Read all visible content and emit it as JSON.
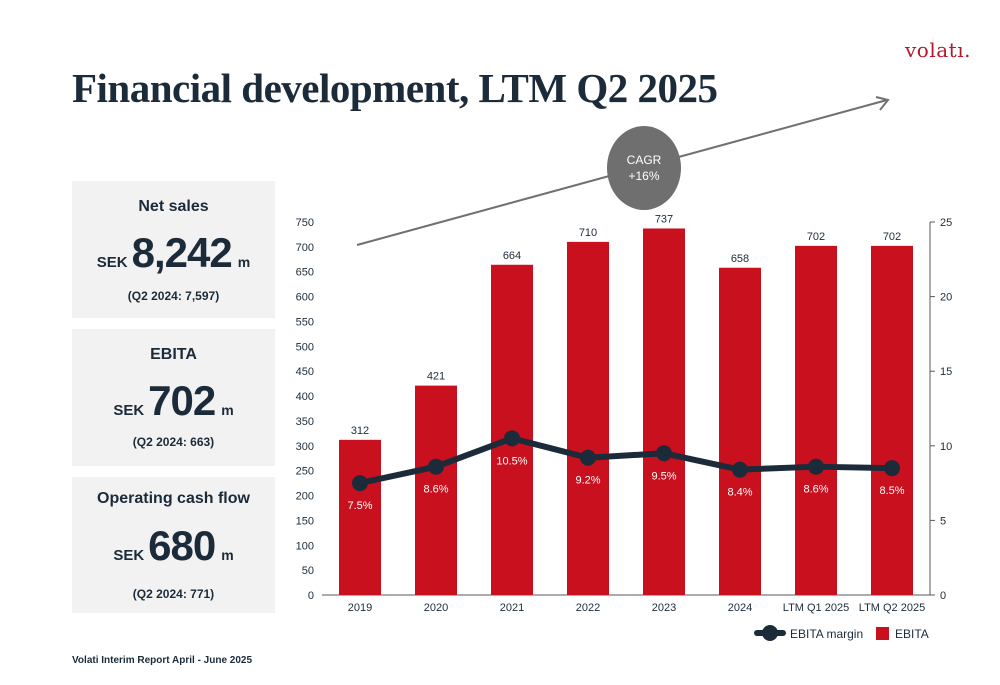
{
  "logo": "volatı.",
  "title": "Financial development, LTM Q2 2025",
  "kpis": [
    {
      "label": "Net sales",
      "unit_pre": "SEK",
      "value": "8,242",
      "unit_post": "m",
      "compare": "(Q2 2024: 7,597)"
    },
    {
      "label": "EBITA",
      "unit_pre": "SEK",
      "value": "702",
      "unit_post": "m",
      "compare": "(Q2 2024: 663)"
    },
    {
      "label": "Operating cash flow",
      "unit_pre": "SEK",
      "value": "680",
      "unit_post": "m",
      "compare": "(Q2 2024: 771)"
    }
  ],
  "cagr": {
    "line1": "CAGR",
    "line2": "+16%"
  },
  "footer": "Volati Interim Report April - June 2025",
  "colors": {
    "bar": "#c8101e",
    "line": "#1c2b3a",
    "kpi_bg": "#f2f2f2",
    "arrow": "#707070",
    "cagr_circle": "#6f6f6f"
  },
  "chart_data": {
    "type": "bar",
    "categories": [
      "2019",
      "2020",
      "2021",
      "2022",
      "2023",
      "2024",
      "LTM Q1 2025",
      "LTM Q2 2025"
    ],
    "series": [
      {
        "name": "EBITA",
        "type": "bar",
        "axis": "left",
        "values": [
          312,
          421,
          664,
          710,
          737,
          658,
          702,
          702
        ],
        "labels": [
          "312",
          "421",
          "664",
          "710",
          "737",
          "658",
          "702",
          "702"
        ]
      },
      {
        "name": "EBITA margin",
        "type": "line",
        "axis": "right",
        "values": [
          7.5,
          8.6,
          10.5,
          9.2,
          9.5,
          8.4,
          8.6,
          8.5
        ],
        "labels": [
          "7.5%",
          "8.6%",
          "10.5%",
          "9.2%",
          "9.5%",
          "8.4%",
          "8.6%",
          "8.5%"
        ]
      }
    ],
    "ylim_left": [
      0,
      750
    ],
    "yticks_left": [
      0,
      50,
      100,
      150,
      200,
      250,
      300,
      350,
      400,
      450,
      500,
      550,
      600,
      650,
      700,
      750
    ],
    "ylim_right": [
      0,
      25
    ],
    "yticks_right": [
      0,
      5,
      10,
      15,
      20,
      25
    ],
    "legend": {
      "position": "bottom-right",
      "items": [
        "EBITA margin",
        "EBITA"
      ]
    }
  }
}
